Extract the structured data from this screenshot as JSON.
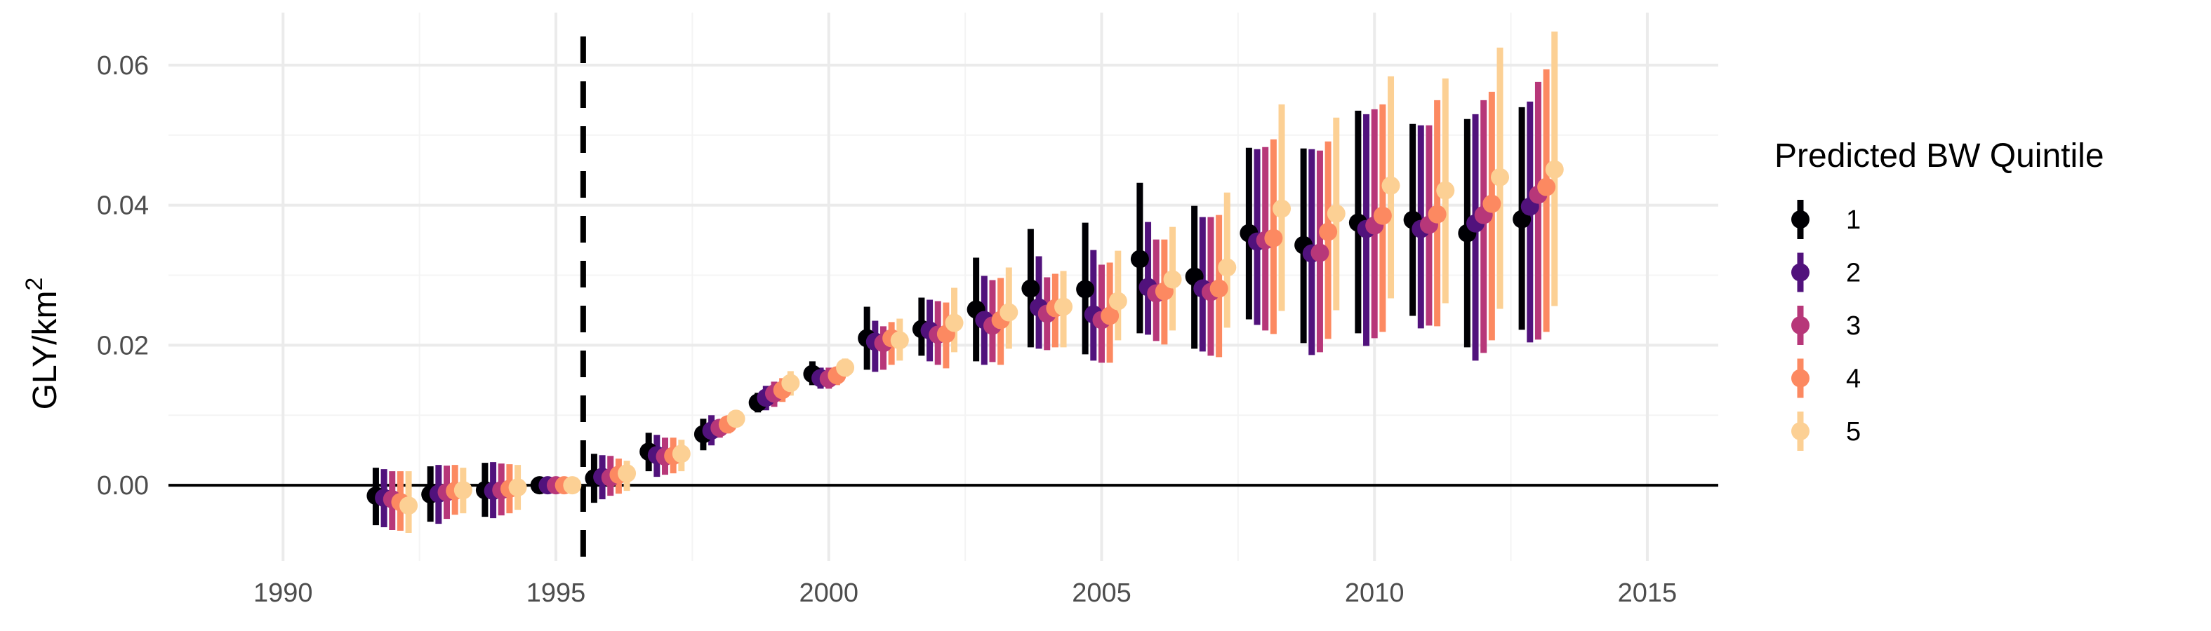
{
  "chart_data": {
    "type": "scatter",
    "title": "",
    "xlabel": "",
    "ylabel": "GLY/km",
    "ylabel_superscript": "2",
    "xlim": [
      1987.9,
      2016.3
    ],
    "ylim": [
      -0.0108,
      0.0675
    ],
    "xticks": [
      1990,
      1995,
      2000,
      2005,
      2010,
      2015
    ],
    "xtick_labels": [
      "1990",
      "1995",
      "2000",
      "2005",
      "2010",
      "2015"
    ],
    "yticks": [
      0.0,
      0.02,
      0.04,
      0.06
    ],
    "ytick_labels": [
      "0.00",
      "0.02",
      "0.04",
      "0.06"
    ],
    "grid": true,
    "reference_lines": {
      "horizontal_y": 0.0,
      "vertical_dashed_x": 1995.5
    },
    "legend": {
      "title": "Predicted BW Quintile",
      "position": "right"
    },
    "x": [
      1992,
      1993,
      1994,
      1995,
      1996,
      1997,
      1998,
      1999,
      2000,
      2001,
      2002,
      2003,
      2004,
      2005,
      2006,
      2007,
      2008,
      2009,
      2010,
      2011,
      2012,
      2013
    ],
    "series": [
      {
        "name": "1",
        "color": "#000004",
        "estimate": [
          -0.0015,
          -0.0013,
          -0.0007,
          0.0,
          0.001,
          0.0048,
          0.0073,
          0.0118,
          0.0159,
          0.021,
          0.0223,
          0.0251,
          0.0281,
          0.028,
          0.0323,
          0.0298,
          0.036,
          0.0343,
          0.0375,
          0.0379,
          0.036,
          0.038
        ],
        "lower": [
          -0.0057,
          -0.0052,
          -0.0045,
          -0.0002,
          -0.0025,
          0.002,
          0.005,
          0.0104,
          0.0143,
          0.0165,
          0.0185,
          0.0177,
          0.0197,
          0.0187,
          0.0217,
          0.0195,
          0.0237,
          0.0203,
          0.0217,
          0.0242,
          0.0197,
          0.0222
        ],
        "upper": [
          0.0025,
          0.0027,
          0.0032,
          0.0002,
          0.0045,
          0.0075,
          0.0095,
          0.0132,
          0.0177,
          0.0255,
          0.0268,
          0.0325,
          0.0366,
          0.0375,
          0.0432,
          0.0399,
          0.0482,
          0.0481,
          0.0535,
          0.0516,
          0.0523,
          0.054
        ]
      },
      {
        "name": "2",
        "color": "#51127c",
        "estimate": [
          -0.0018,
          -0.0012,
          -0.0008,
          0.0,
          0.0012,
          0.0043,
          0.0078,
          0.0125,
          0.0153,
          0.0205,
          0.0221,
          0.0236,
          0.0254,
          0.0244,
          0.0283,
          0.0281,
          0.0348,
          0.0331,
          0.0366,
          0.0366,
          0.0374,
          0.0398
        ],
        "lower": [
          -0.006,
          -0.0055,
          -0.0047,
          -0.0002,
          -0.002,
          0.0012,
          0.0057,
          0.0107,
          0.0138,
          0.0162,
          0.0177,
          0.0172,
          0.0195,
          0.0178,
          0.0215,
          0.0191,
          0.0229,
          0.0186,
          0.0199,
          0.0224,
          0.0178,
          0.0204
        ],
        "upper": [
          0.0023,
          0.0029,
          0.0033,
          0.0002,
          0.0043,
          0.0072,
          0.01,
          0.0142,
          0.0168,
          0.0235,
          0.0265,
          0.0299,
          0.0327,
          0.0336,
          0.0376,
          0.0383,
          0.048,
          0.048,
          0.053,
          0.0514,
          0.053,
          0.0548
        ]
      },
      {
        "name": "3",
        "color": "#b73779",
        "estimate": [
          -0.002,
          -0.001,
          -0.0007,
          0.0,
          0.0011,
          0.0041,
          0.0082,
          0.0131,
          0.0152,
          0.0203,
          0.0215,
          0.0228,
          0.0245,
          0.0236,
          0.0274,
          0.0276,
          0.035,
          0.0332,
          0.0371,
          0.0372,
          0.0386,
          0.0415
        ],
        "lower": [
          -0.0064,
          -0.0048,
          -0.0043,
          -0.0002,
          -0.0015,
          0.0015,
          0.0068,
          0.0112,
          0.0138,
          0.0165,
          0.0172,
          0.0176,
          0.0193,
          0.0175,
          0.0206,
          0.0185,
          0.0221,
          0.019,
          0.021,
          0.0228,
          0.0189,
          0.0208
        ],
        "upper": [
          0.002,
          0.0028,
          0.0031,
          0.0002,
          0.0042,
          0.0068,
          0.0094,
          0.0148,
          0.0168,
          0.0227,
          0.0263,
          0.0293,
          0.0297,
          0.0315,
          0.0351,
          0.0383,
          0.0483,
          0.0478,
          0.0537,
          0.0514,
          0.055,
          0.0576
        ]
      },
      {
        "name": "4",
        "color": "#fc8961",
        "estimate": [
          -0.0024,
          -0.0008,
          -0.0005,
          0.0,
          0.0015,
          0.0042,
          0.0087,
          0.0136,
          0.0157,
          0.021,
          0.0216,
          0.0236,
          0.0253,
          0.0242,
          0.0277,
          0.0281,
          0.0353,
          0.0362,
          0.0385,
          0.0387,
          0.0402,
          0.0426
        ],
        "lower": [
          -0.0065,
          -0.0042,
          -0.004,
          -0.0002,
          -0.0012,
          0.0017,
          0.0074,
          0.0119,
          0.0143,
          0.0172,
          0.0167,
          0.0172,
          0.0197,
          0.0175,
          0.0201,
          0.0183,
          0.0216,
          0.0209,
          0.0219,
          0.0227,
          0.0207,
          0.0219
        ],
        "upper": [
          0.002,
          0.0029,
          0.003,
          0.0002,
          0.0038,
          0.0068,
          0.0097,
          0.0153,
          0.0168,
          0.0233,
          0.0261,
          0.0296,
          0.0302,
          0.0318,
          0.0351,
          0.0386,
          0.0494,
          0.0491,
          0.0544,
          0.055,
          0.0562,
          0.0594
        ]
      },
      {
        "name": "5",
        "color": "#fcd094",
        "estimate": [
          -0.0029,
          -0.0007,
          -0.0003,
          0.0,
          0.0017,
          0.0045,
          0.0095,
          0.0146,
          0.0168,
          0.0207,
          0.0232,
          0.0247,
          0.0255,
          0.0263,
          0.0294,
          0.0311,
          0.0395,
          0.0388,
          0.0428,
          0.0421,
          0.044,
          0.0451
        ],
        "lower": [
          -0.0068,
          -0.004,
          -0.0035,
          -0.0002,
          -0.0008,
          0.002,
          0.0088,
          0.0128,
          0.0155,
          0.0178,
          0.019,
          0.0195,
          0.0197,
          0.0207,
          0.0221,
          0.0225,
          0.0249,
          0.025,
          0.0267,
          0.026,
          0.0252,
          0.0256
        ],
        "upper": [
          0.002,
          0.0025,
          0.0029,
          0.0002,
          0.0035,
          0.0065,
          0.0103,
          0.0163,
          0.0181,
          0.0238,
          0.0282,
          0.0311,
          0.0306,
          0.0335,
          0.0369,
          0.0418,
          0.0544,
          0.0525,
          0.0584,
          0.0581,
          0.0625,
          0.0648
        ]
      }
    ]
  }
}
